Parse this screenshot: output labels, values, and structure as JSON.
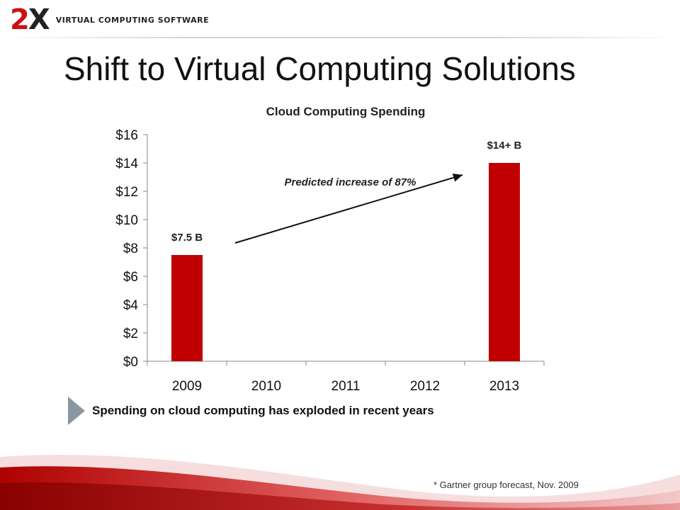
{
  "logo": {
    "mark_left": "2",
    "mark_right": "X",
    "text": "VIRTUAL COMPUTING SOFTWARE"
  },
  "slide": {
    "title": "Shift to Virtual Computing Solutions",
    "bullet": "Spending on cloud computing has exploded in recent years",
    "footnote": "* Gartner group forecast, Nov. 2009"
  },
  "chart_data": {
    "type": "bar",
    "title": "Cloud Computing Spending",
    "categories": [
      "2009",
      "2010",
      "2011",
      "2012",
      "2013"
    ],
    "values": [
      7.5,
      null,
      null,
      null,
      14
    ],
    "data_labels": [
      "$7.5 B",
      "",
      "",
      "",
      "$14+ B"
    ],
    "yticks": [
      "$0",
      "$2",
      "$4",
      "$6",
      "$8",
      "$10",
      "$12",
      "$14",
      "$16"
    ],
    "ylim": [
      0,
      16
    ],
    "ystep": 2,
    "xlabel": "",
    "ylabel": "",
    "grid": false,
    "legend": "none",
    "annotation": "Predicted increase of 87%",
    "bar_color": "#c00000"
  }
}
